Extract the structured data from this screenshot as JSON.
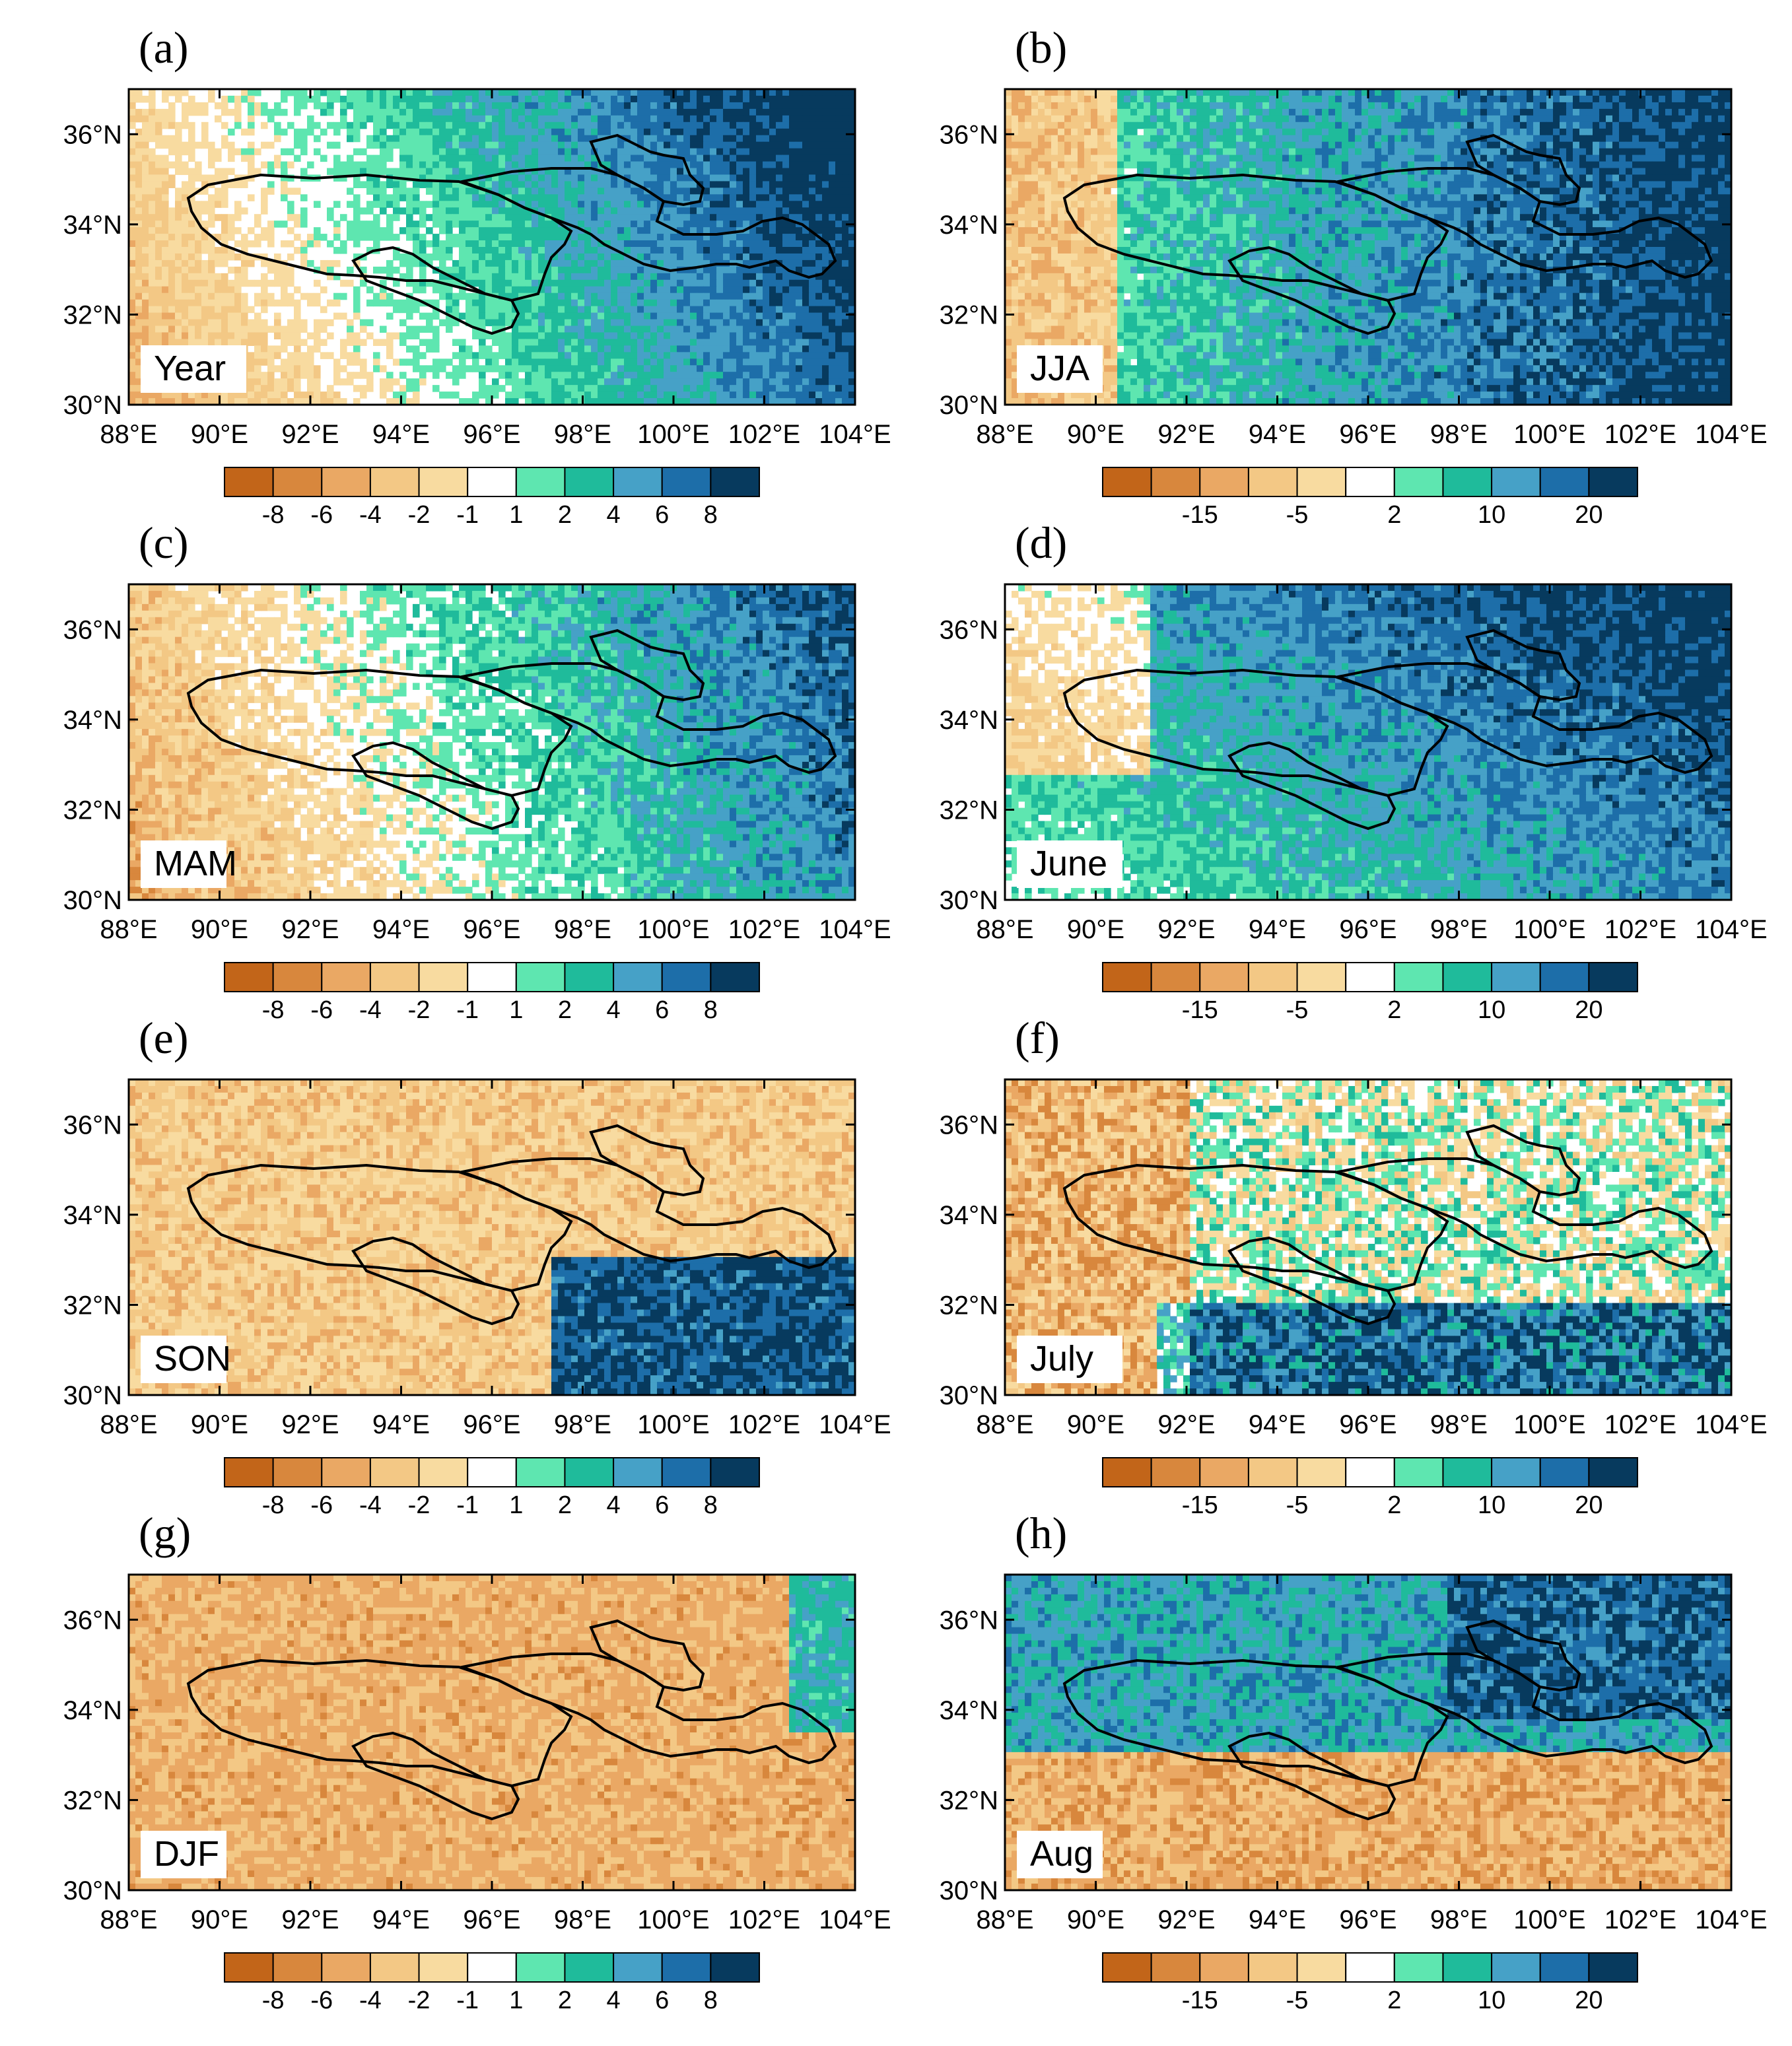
{
  "figure": {
    "lon_ticks": [
      "88°E",
      "90°E",
      "92°E",
      "94°E",
      "96°E",
      "98°E",
      "100°E",
      "102°E",
      "104°E"
    ],
    "lat_ticks": [
      "30°N",
      "32°N",
      "34°N",
      "36°N"
    ],
    "lon_range": [
      88,
      104
    ],
    "lat_range": [
      30,
      37
    ],
    "colors": [
      "#c26519",
      "#d8873d",
      "#eaa864",
      "#f3c885",
      "#f8dba0",
      "#ffffff",
      "#5ee6b0",
      "#1fbb9b",
      "#46a1c7",
      "#1d6ea9",
      "#073a5e"
    ],
    "colorbar_a": {
      "labels": [
        "-8",
        "-6",
        "-4",
        "-2",
        "-1",
        "1",
        "2",
        "4",
        "6",
        "8"
      ]
    },
    "colorbar_b": {
      "labels": [
        "-15",
        "-5",
        "2",
        "10",
        "20"
      ]
    },
    "panels": [
      {
        "label": "(a)",
        "tag": "Year",
        "scale": "a"
      },
      {
        "label": "(b)",
        "tag": "JJA",
        "scale": "b"
      },
      {
        "label": "(c)",
        "tag": "MAM",
        "scale": "a"
      },
      {
        "label": "(d)",
        "tag": "June",
        "scale": "b"
      },
      {
        "label": "(e)",
        "tag": "SON",
        "scale": "a"
      },
      {
        "label": "(f)",
        "tag": "July",
        "scale": "b"
      },
      {
        "label": "(g)",
        "tag": "DJF",
        "scale": "a"
      },
      {
        "label": "(h)",
        "tag": "Aug",
        "scale": "b"
      }
    ]
  }
}
